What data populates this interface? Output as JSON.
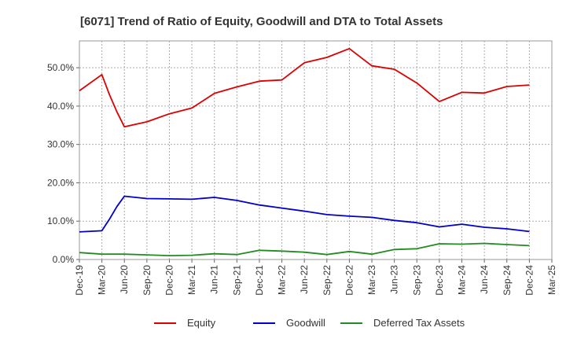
{
  "chart_data": {
    "type": "line",
    "title": "[6071]  Trend of Ratio of Equity, Goodwill and DTA to Total Assets",
    "xlabel": "",
    "ylabel": "",
    "ylim": [
      0,
      57
    ],
    "y_ticks": [
      "0.0%",
      "10.0%",
      "20.0%",
      "30.0%",
      "40.0%",
      "50.0%"
    ],
    "y_tick_values": [
      0,
      10,
      20,
      30,
      40,
      50
    ],
    "x_ticks": [
      "Dec-19",
      "Mar-20",
      "Jun-20",
      "Sep-20",
      "Dec-20",
      "Mar-21",
      "Jun-21",
      "Sep-21",
      "Dec-21",
      "Mar-22",
      "Jun-22",
      "Sep-22",
      "Dec-22",
      "Mar-23",
      "Jun-23",
      "Sep-23",
      "Dec-23",
      "Mar-24",
      "Jun-24",
      "Sep-24",
      "Dec-24",
      "Mar-25"
    ],
    "x_tick_positions": [
      0,
      3,
      6,
      9,
      12,
      15,
      18,
      21,
      24,
      27,
      30,
      33,
      36,
      39,
      42,
      45,
      48,
      51,
      54,
      57,
      60,
      63
    ],
    "x_range": [
      0,
      63
    ],
    "grid": "both-dotted",
    "legend": "bottom",
    "series": [
      {
        "name": "Equity",
        "color": "#dd0000",
        "x": [
          0,
          3,
          4,
          5,
          6,
          9,
          12,
          15,
          18,
          21,
          24,
          27,
          30,
          33,
          36,
          39,
          42,
          45,
          48,
          51,
          54,
          57,
          60
        ],
        "values": [
          44.0,
          48.2,
          43.0,
          38.5,
          34.6,
          35.9,
          38.0,
          39.5,
          43.3,
          45.0,
          46.5,
          46.8,
          51.3,
          52.7,
          55.0,
          50.5,
          49.6,
          46.0,
          41.2,
          43.6,
          43.4,
          45.1,
          45.5
        ]
      },
      {
        "name": "Goodwill",
        "color": "#0000cc",
        "x": [
          0,
          3,
          4,
          5,
          6,
          9,
          12,
          15,
          18,
          21,
          24,
          27,
          30,
          33,
          36,
          39,
          42,
          45,
          48,
          51,
          54,
          57,
          60
        ],
        "values": [
          7.2,
          7.5,
          10.5,
          13.8,
          16.5,
          15.9,
          15.8,
          15.7,
          16.2,
          15.4,
          14.2,
          13.4,
          12.6,
          11.7,
          11.3,
          11.0,
          10.2,
          9.6,
          8.5,
          9.2,
          8.4,
          8.0,
          7.3
        ]
      },
      {
        "name": "Deferred Tax Assets",
        "color": "#228b22",
        "x": [
          0,
          3,
          4,
          5,
          6,
          9,
          12,
          15,
          18,
          21,
          24,
          27,
          30,
          33,
          36,
          39,
          42,
          45,
          48,
          51,
          54,
          57,
          60
        ],
        "values": [
          1.8,
          1.4,
          1.4,
          1.4,
          1.4,
          1.2,
          1.0,
          1.1,
          1.5,
          1.3,
          2.4,
          2.2,
          1.9,
          1.3,
          2.1,
          1.4,
          2.6,
          2.8,
          4.1,
          4.0,
          4.2,
          3.9,
          3.6
        ]
      }
    ]
  }
}
